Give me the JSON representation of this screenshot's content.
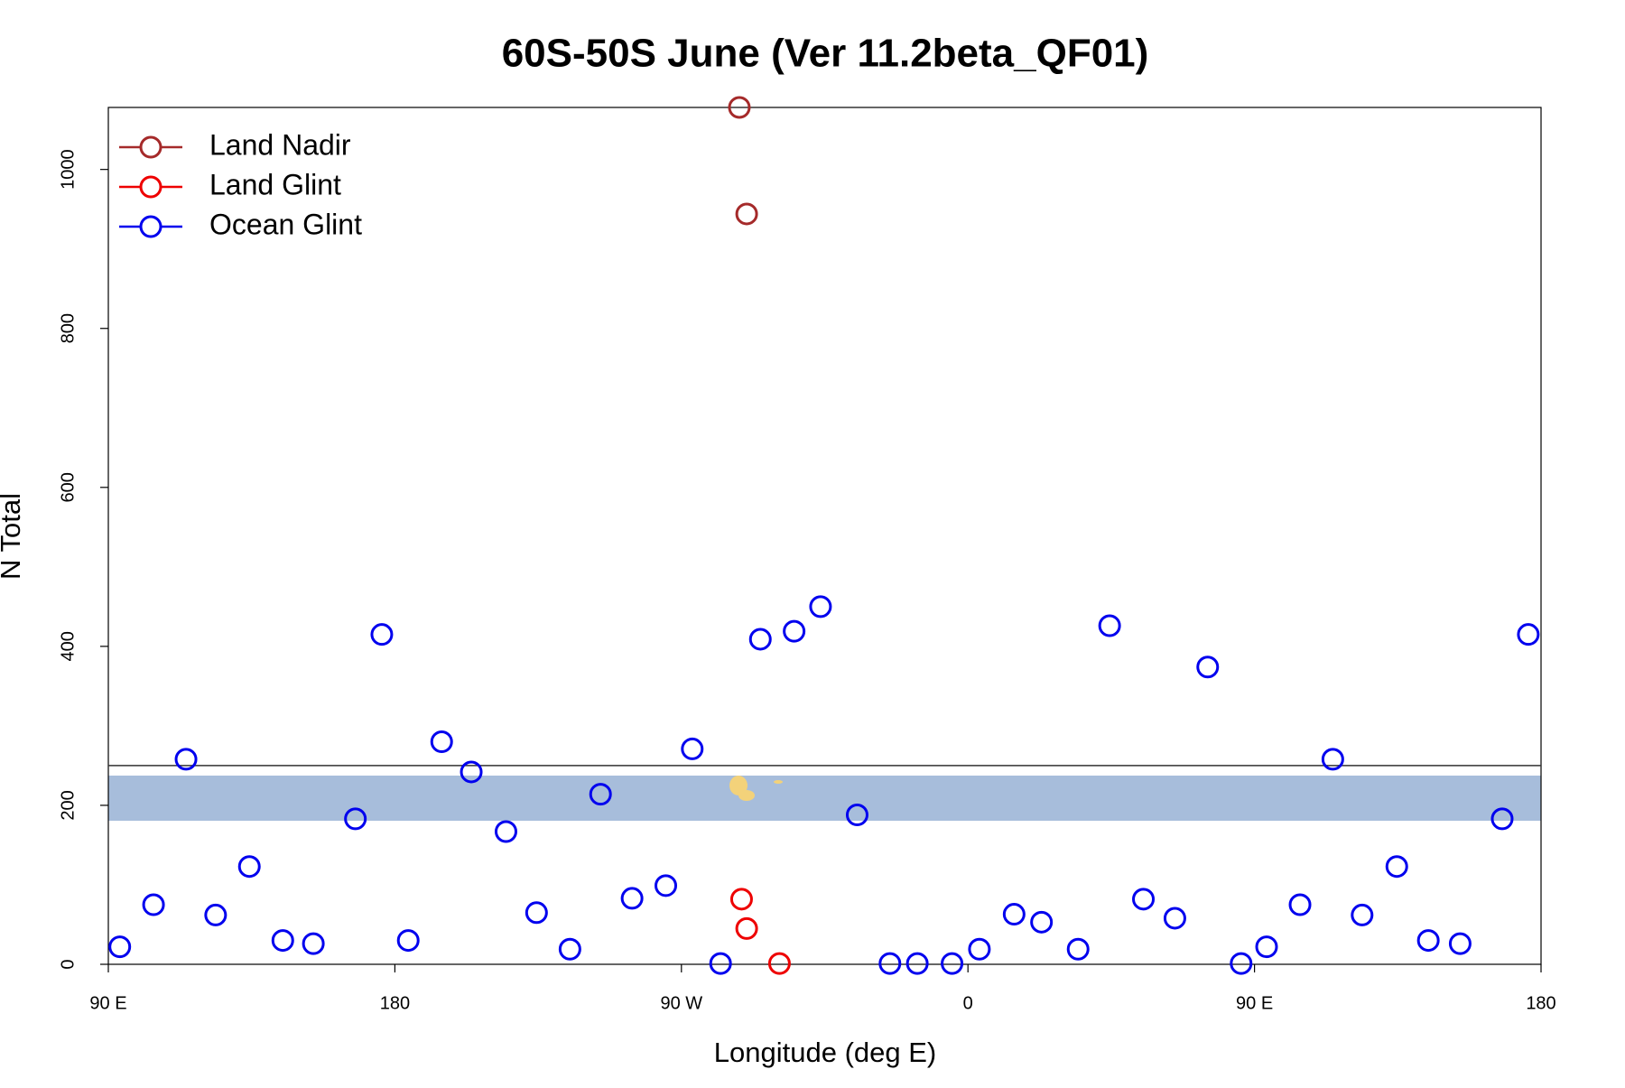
{
  "chart_data": {
    "type": "scatter",
    "title": "60S-50S June (Ver 11.2beta_QF01)",
    "x_label": "Longitude (deg E)",
    "y_label": "N Total",
    "xlim": [
      90,
      540
    ],
    "ylim": [
      0,
      1078
    ],
    "xticks": [
      {
        "value": 90,
        "label": "90 E"
      },
      180,
      {
        "value": 270,
        "label": "90 W"
      },
      {
        "value": 360,
        "label": "0"
      },
      {
        "value": 450,
        "label": "90 E"
      },
      {
        "value": 540,
        "label": "180"
      }
    ],
    "yticks": [
      0,
      200,
      400,
      600,
      800,
      1000
    ],
    "hline": 250,
    "legend": "top-left",
    "series": [
      {
        "name": "Land Nadir",
        "color": "#a52a2a",
        "x": [
          288.2,
          290.5
        ],
        "values": [
          1078,
          944
        ]
      },
      {
        "name": "Land Glint",
        "color": "#ee0000",
        "x": [
          288.9,
          290.5,
          300.8
        ],
        "values": [
          82,
          45,
          1
        ]
      },
      {
        "name": "Ocean Glint",
        "color": "#0000ee",
        "x": [
          93.6,
          104.2,
          114.4,
          123.7,
          134.3,
          144.8,
          154.4,
          167.6,
          175.9,
          184.2,
          194.7,
          204.0,
          214.9,
          224.5,
          235.0,
          244.6,
          254.5,
          265.1,
          273.4,
          282.3,
          294.8,
          305.4,
          313.7,
          325.2,
          335.5,
          344.1,
          355.0,
          363.6,
          374.5,
          383.1,
          394.6,
          404.5,
          415.1,
          425.0,
          435.3,
          445.8,
          453.8,
          464.3,
          474.6,
          483.8,
          494.7,
          504.6,
          514.6,
          527.8,
          536.0
        ],
        "values": [
          22,
          75,
          258,
          62,
          123,
          30,
          26,
          183,
          415,
          30,
          280,
          242,
          167,
          65,
          19,
          214,
          83,
          99,
          271,
          1,
          409,
          419,
          450,
          188,
          1,
          1,
          1,
          19,
          63,
          53,
          19,
          426,
          82,
          58,
          374,
          1,
          22,
          75,
          258,
          62,
          123,
          30,
          26,
          183,
          415
        ]
      }
    ]
  }
}
